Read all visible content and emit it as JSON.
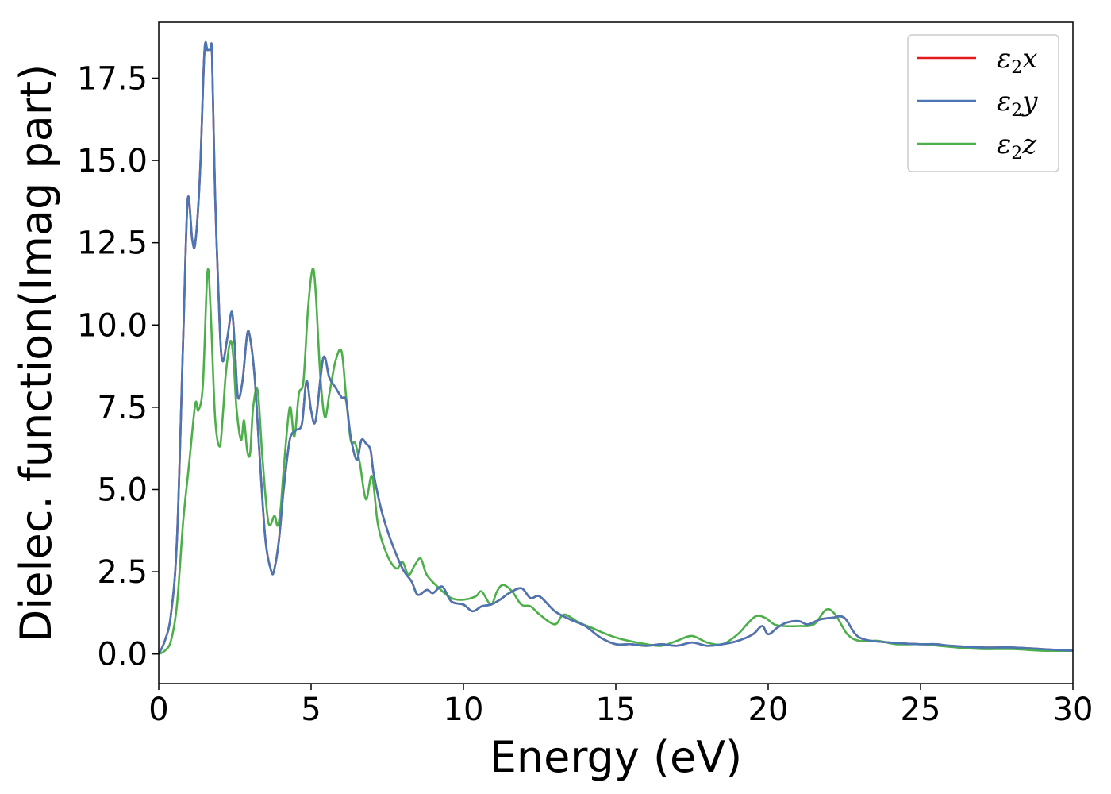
{
  "chart_data": {
    "type": "line",
    "xlabel": "Energy (eV)",
    "ylabel": "Dielec. function(Imag part)",
    "xlim": [
      0,
      30
    ],
    "ylim": [
      -0.9,
      19.2
    ],
    "xticks": [
      0,
      5,
      10,
      15,
      20,
      25,
      30
    ],
    "xtick_labels": [
      "0",
      "5",
      "10",
      "15",
      "20",
      "25",
      "30"
    ],
    "yticks": [
      0.0,
      2.5,
      5.0,
      7.5,
      10.0,
      12.5,
      15.0,
      17.5
    ],
    "ytick_labels": [
      "0.0",
      "2.5",
      "5.0",
      "7.5",
      "10.0",
      "12.5",
      "15.0",
      "17.5"
    ],
    "grid": false,
    "legend_position": "top-right",
    "series": [
      {
        "name": "ε2x",
        "legend_base": "ε",
        "legend_sub": "2",
        "legend_suffix": "x",
        "color": "#e41a1c",
        "x": [
          0,
          0.2,
          0.4,
          0.6,
          0.8,
          0.95,
          1.1,
          1.2,
          1.35,
          1.5,
          1.6,
          1.7,
          1.75,
          1.85,
          2.0,
          2.1,
          2.25,
          2.4,
          2.5,
          2.6,
          2.75,
          2.9,
          3.0,
          3.15,
          3.3,
          3.5,
          3.7,
          3.8,
          3.95,
          4.1,
          4.3,
          4.5,
          4.7,
          4.85,
          5.0,
          5.15,
          5.4,
          5.6,
          5.8,
          6.0,
          6.15,
          6.3,
          6.5,
          6.65,
          6.8,
          6.95,
          7.05,
          7.3,
          7.6,
          8.0,
          8.3,
          8.5,
          8.8,
          9.0,
          9.3,
          9.6,
          10.0,
          10.3,
          10.6,
          10.9,
          11.2,
          11.5,
          11.9,
          12.2,
          12.5,
          13.0,
          13.5,
          14.0,
          14.5,
          15.0,
          15.5,
          16.0,
          16.5,
          17.0,
          17.5,
          18.0,
          18.5,
          19.0,
          19.5,
          19.8,
          20.0,
          20.3,
          20.6,
          21.0,
          21.3,
          21.7,
          22.1,
          22.5,
          23.0,
          24.0,
          25.0,
          25.5,
          26.0,
          27.0,
          28.0,
          29.0,
          30.0
        ],
        "y": [
          0.0,
          0.4,
          1.2,
          3.5,
          9.5,
          13.8,
          12.6,
          12.5,
          14.5,
          18.3,
          18.35,
          18.35,
          18.2,
          14.0,
          10.0,
          8.9,
          9.6,
          10.4,
          9.3,
          7.8,
          8.3,
          9.7,
          9.6,
          8.4,
          6.2,
          3.5,
          2.5,
          2.6,
          3.5,
          5.0,
          6.5,
          6.8,
          7.0,
          8.3,
          7.4,
          7.1,
          9.0,
          8.4,
          8.1,
          7.8,
          7.7,
          6.6,
          5.9,
          6.5,
          6.4,
          6.2,
          5.5,
          4.4,
          3.5,
          2.6,
          2.2,
          1.8,
          1.95,
          1.85,
          2.05,
          1.6,
          1.5,
          1.3,
          1.45,
          1.5,
          1.65,
          1.85,
          2.0,
          1.7,
          1.75,
          1.3,
          1.05,
          0.85,
          0.5,
          0.3,
          0.3,
          0.25,
          0.3,
          0.25,
          0.35,
          0.25,
          0.3,
          0.4,
          0.6,
          0.85,
          0.6,
          0.8,
          0.95,
          1.0,
          0.9,
          1.05,
          1.1,
          1.1,
          0.5,
          0.35,
          0.3,
          0.3,
          0.25,
          0.2,
          0.2,
          0.15,
          0.1
        ]
      },
      {
        "name": "ε2y",
        "legend_base": "ε",
        "legend_sub": "2",
        "legend_suffix": "y",
        "color": "#4a76b4",
        "x": [
          0,
          0.2,
          0.4,
          0.6,
          0.8,
          0.95,
          1.1,
          1.2,
          1.35,
          1.5,
          1.6,
          1.7,
          1.75,
          1.85,
          2.0,
          2.1,
          2.25,
          2.4,
          2.5,
          2.6,
          2.75,
          2.9,
          3.0,
          3.15,
          3.3,
          3.5,
          3.7,
          3.8,
          3.95,
          4.1,
          4.3,
          4.5,
          4.7,
          4.85,
          5.0,
          5.15,
          5.4,
          5.6,
          5.8,
          6.0,
          6.15,
          6.3,
          6.5,
          6.65,
          6.8,
          6.95,
          7.05,
          7.3,
          7.6,
          8.0,
          8.3,
          8.5,
          8.8,
          9.0,
          9.3,
          9.6,
          10.0,
          10.3,
          10.6,
          10.9,
          11.2,
          11.5,
          11.9,
          12.2,
          12.5,
          13.0,
          13.5,
          14.0,
          14.5,
          15.0,
          15.5,
          16.0,
          16.5,
          17.0,
          17.5,
          18.0,
          18.5,
          19.0,
          19.5,
          19.8,
          20.0,
          20.3,
          20.6,
          21.0,
          21.3,
          21.7,
          22.1,
          22.5,
          23.0,
          24.0,
          25.0,
          25.5,
          26.0,
          27.0,
          28.0,
          29.0,
          30.0
        ],
        "y": [
          0.0,
          0.4,
          1.2,
          3.5,
          9.5,
          13.8,
          12.6,
          12.5,
          14.5,
          18.3,
          18.35,
          18.35,
          18.2,
          14.0,
          10.0,
          8.9,
          9.6,
          10.4,
          9.3,
          7.8,
          8.3,
          9.7,
          9.6,
          8.4,
          6.2,
          3.5,
          2.5,
          2.6,
          3.5,
          5.0,
          6.5,
          6.8,
          7.0,
          8.3,
          7.4,
          7.1,
          9.0,
          8.4,
          8.1,
          7.8,
          7.7,
          6.6,
          5.9,
          6.5,
          6.4,
          6.2,
          5.5,
          4.4,
          3.5,
          2.6,
          2.2,
          1.8,
          1.95,
          1.85,
          2.05,
          1.6,
          1.5,
          1.3,
          1.45,
          1.5,
          1.65,
          1.85,
          2.0,
          1.7,
          1.75,
          1.3,
          1.05,
          0.85,
          0.5,
          0.3,
          0.3,
          0.25,
          0.3,
          0.25,
          0.35,
          0.25,
          0.3,
          0.4,
          0.6,
          0.85,
          0.6,
          0.8,
          0.95,
          1.0,
          0.9,
          1.05,
          1.1,
          1.1,
          0.5,
          0.35,
          0.3,
          0.3,
          0.25,
          0.2,
          0.2,
          0.15,
          0.1
        ]
      },
      {
        "name": "ε2z",
        "legend_base": "ε",
        "legend_sub": "2",
        "legend_suffix": "z",
        "color": "#4daf4a",
        "x": [
          0,
          0.2,
          0.4,
          0.6,
          0.8,
          1.0,
          1.2,
          1.3,
          1.45,
          1.6,
          1.7,
          1.85,
          2.0,
          2.1,
          2.2,
          2.35,
          2.45,
          2.55,
          2.7,
          2.8,
          2.9,
          3.0,
          3.1,
          3.25,
          3.4,
          3.6,
          3.8,
          3.9,
          4.0,
          4.1,
          4.3,
          4.45,
          4.6,
          4.75,
          4.9,
          5.05,
          5.15,
          5.3,
          5.45,
          5.6,
          5.8,
          6.0,
          6.15,
          6.3,
          6.45,
          6.6,
          6.8,
          7.0,
          7.2,
          7.5,
          7.8,
          8.0,
          8.2,
          8.4,
          8.6,
          8.8,
          9.2,
          9.6,
          10.0,
          10.4,
          10.6,
          10.9,
          11.1,
          11.3,
          11.6,
          11.9,
          12.2,
          12.5,
          13.0,
          13.3,
          13.8,
          14.2,
          14.7,
          15.2,
          16.0,
          16.5,
          17.0,
          17.5,
          18.0,
          18.5,
          19.0,
          19.3,
          19.6,
          19.9,
          20.2,
          20.5,
          21.0,
          21.5,
          21.9,
          22.2,
          22.6,
          23.0,
          23.6,
          24.2,
          25.0,
          25.6,
          26.2,
          27.0,
          28.0,
          29.0,
          30.0
        ],
        "y": [
          0.0,
          0.1,
          0.4,
          1.5,
          4.0,
          5.8,
          7.6,
          7.4,
          8.2,
          11.6,
          10.5,
          7.2,
          6.3,
          7.2,
          8.5,
          9.5,
          9.0,
          7.5,
          6.5,
          7.1,
          6.2,
          6.1,
          7.5,
          8.0,
          6.0,
          4.0,
          4.2,
          3.9,
          4.4,
          5.6,
          7.5,
          6.6,
          7.9,
          8.3,
          10.5,
          11.7,
          11.0,
          8.5,
          7.2,
          7.9,
          8.9,
          9.2,
          7.8,
          6.5,
          6.4,
          5.8,
          4.7,
          5.4,
          3.9,
          3.0,
          2.6,
          2.8,
          2.4,
          2.7,
          2.9,
          2.4,
          2.0,
          1.7,
          1.65,
          1.75,
          1.9,
          1.5,
          1.9,
          2.1,
          1.9,
          1.5,
          1.45,
          1.2,
          0.9,
          1.2,
          0.95,
          0.8,
          0.6,
          0.45,
          0.3,
          0.25,
          0.4,
          0.55,
          0.35,
          0.3,
          0.6,
          0.9,
          1.15,
          1.1,
          0.9,
          0.85,
          0.85,
          0.9,
          1.35,
          1.2,
          0.6,
          0.4,
          0.4,
          0.3,
          0.3,
          0.25,
          0.2,
          0.15,
          0.15,
          0.1,
          0.1
        ]
      }
    ]
  }
}
